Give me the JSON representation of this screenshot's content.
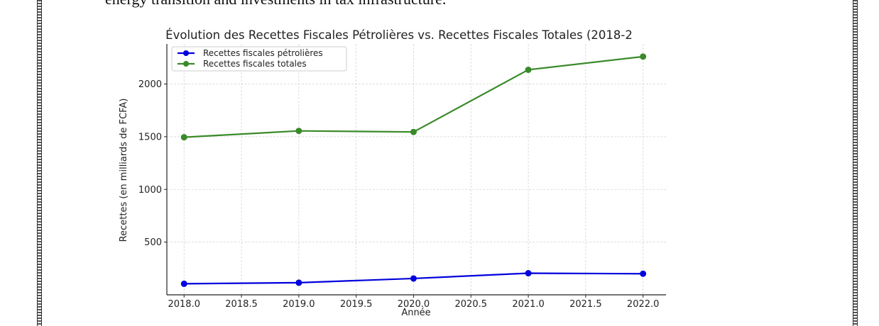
{
  "document": {
    "top_text": "energy transition and investments in tax infrastructure."
  },
  "chart_data": {
    "type": "line",
    "title": "Évolution des Recettes Fiscales Pétrolières vs. Recettes Fiscales Totales (2018-2",
    "xlabel": "Année",
    "ylabel": "Recettes (en milliards de FCFA)",
    "x": [
      2018,
      2019,
      2020,
      2021,
      2022
    ],
    "xlim": [
      2017.85,
      2022.2
    ],
    "ylim": [
      0,
      2380
    ],
    "xticks": [
      2018.0,
      2018.5,
      2019.0,
      2019.5,
      2020.0,
      2020.5,
      2021.0,
      2021.5,
      2022.0
    ],
    "xtick_labels": [
      "2018.0",
      "2018.5",
      "2019.0",
      "2019.5",
      "2020.0",
      "2020.5",
      "2021.0",
      "2021.5",
      "2022.0"
    ],
    "yticks": [
      500,
      1000,
      1500,
      2000
    ],
    "ytick_labels": [
      "500",
      "1000",
      "1500",
      "2000"
    ],
    "grid": true,
    "legend_position": "top-left",
    "series": [
      {
        "name": "Recettes fiscales pétrolières",
        "color": "#0000dd",
        "values": [
          105,
          115,
          155,
          205,
          200
        ]
      },
      {
        "name": "Recettes fiscales totales",
        "color": "#3a8a2a",
        "values": [
          1495,
          1555,
          1545,
          2135,
          2260
        ]
      }
    ]
  }
}
